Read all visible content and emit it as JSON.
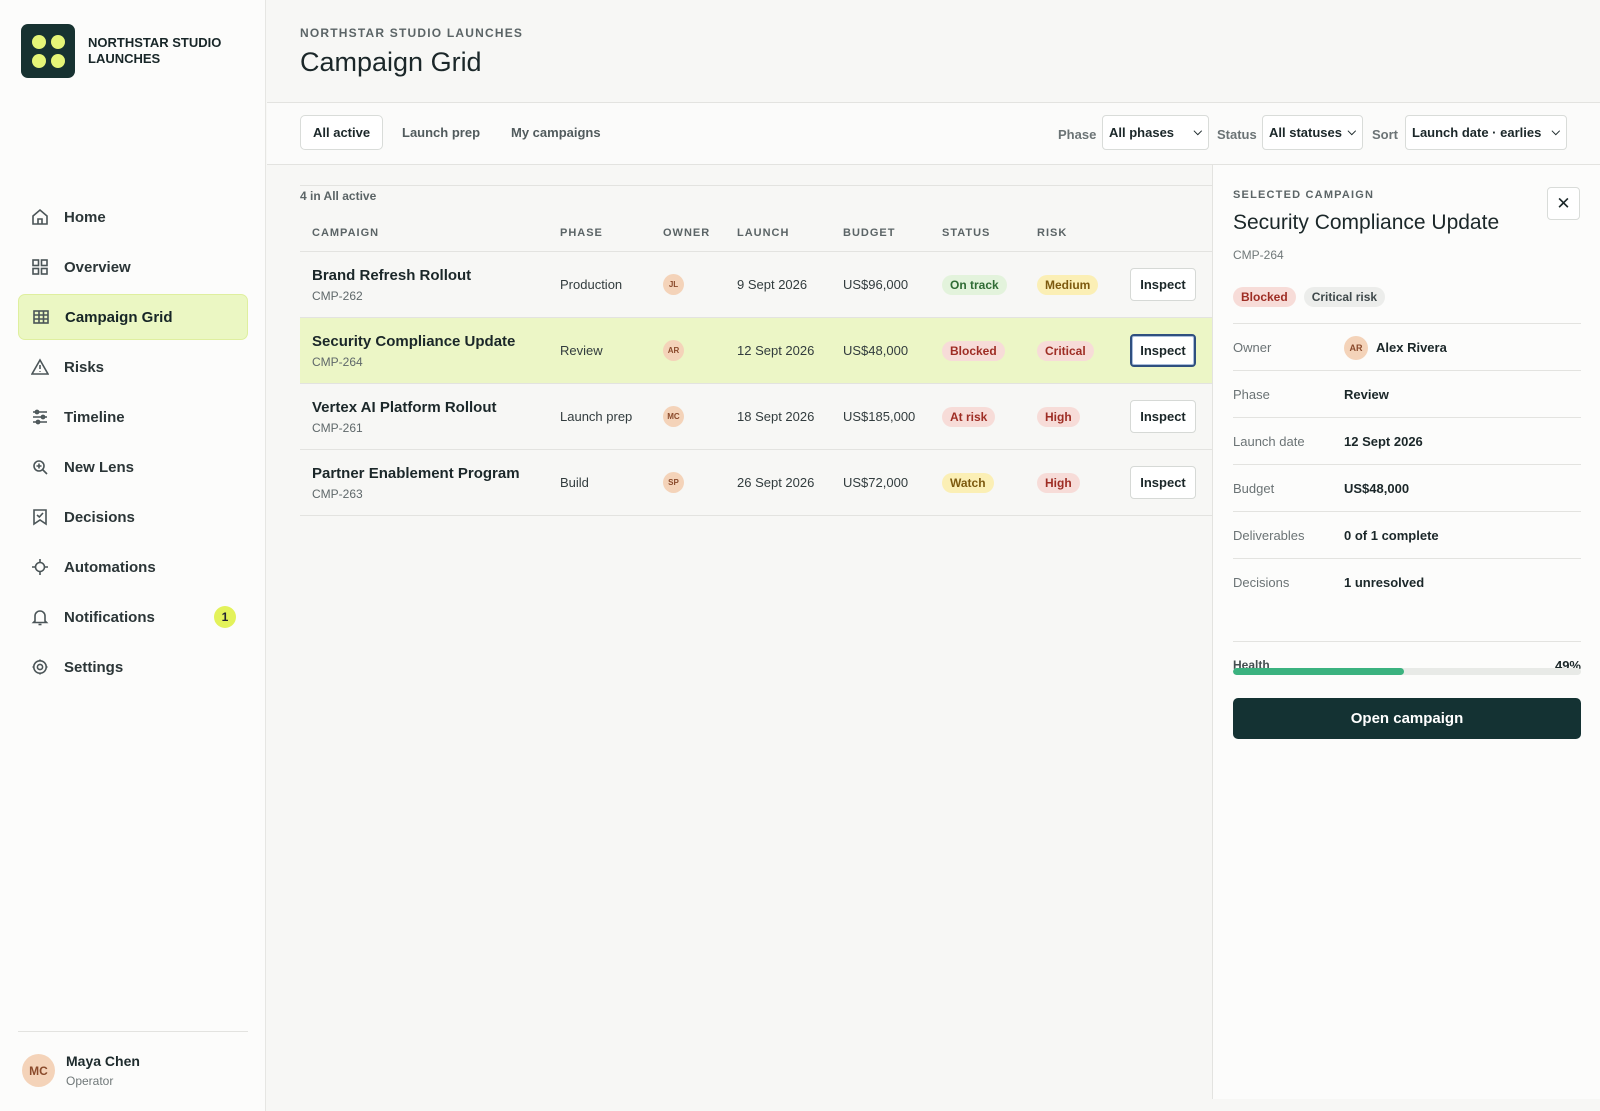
{
  "brand": {
    "name": "NORTHSTAR STUDIO LAUNCHES"
  },
  "sidebar": {
    "items": [
      {
        "label": "Home",
        "icon": "home-icon"
      },
      {
        "label": "Overview",
        "icon": "grid-icon"
      },
      {
        "label": "Campaign Grid",
        "icon": "table-icon",
        "active": true
      },
      {
        "label": "Risks",
        "icon": "warning-icon"
      },
      {
        "label": "Timeline",
        "icon": "sliders-icon"
      },
      {
        "label": "New Lens",
        "icon": "lens-icon"
      },
      {
        "label": "Decisions",
        "icon": "bookmark-check-icon"
      },
      {
        "label": "Automations",
        "icon": "crosshair-icon"
      },
      {
        "label": "Notifications",
        "icon": "bell-icon",
        "badge": "1"
      },
      {
        "label": "Settings",
        "icon": "gear-icon"
      }
    ]
  },
  "user": {
    "initials": "MC",
    "name": "Maya Chen",
    "role": "Operator"
  },
  "header": {
    "eyebrow": "NORTHSTAR STUDIO LAUNCHES",
    "title": "Campaign Grid"
  },
  "toolbar": {
    "tabs": [
      "All active",
      "Launch prep",
      "My campaigns"
    ],
    "phase_label": "Phase",
    "phase_value": "All phases",
    "status_label": "Status",
    "status_value": "All statuses",
    "sort_label": "Sort",
    "sort_value": "Launch date · earlies"
  },
  "table": {
    "count": "4 in All active",
    "columns": [
      "CAMPAIGN",
      "PHASE",
      "OWNER",
      "LAUNCH",
      "BUDGET",
      "STATUS",
      "RISK"
    ],
    "inspect_label": "Inspect",
    "rows": [
      {
        "name": "Brand Refresh Rollout",
        "id": "CMP-262",
        "phase": "Production",
        "owner": "JL",
        "launch": "9 Sept 2026",
        "budget": "US$96,000",
        "status": "On track",
        "risk": "Medium"
      },
      {
        "name": "Security Compliance Update",
        "id": "CMP-264",
        "phase": "Review",
        "owner": "AR",
        "launch": "12 Sept 2026",
        "budget": "US$48,000",
        "status": "Blocked",
        "risk": "Critical",
        "selected": true
      },
      {
        "name": "Vertex AI Platform Rollout",
        "id": "CMP-261",
        "phase": "Launch prep",
        "owner": "MC",
        "launch": "18 Sept 2026",
        "budget": "US$185,000",
        "status": "At risk",
        "risk": "High"
      },
      {
        "name": "Partner Enablement Program",
        "id": "CMP-263",
        "phase": "Build",
        "owner": "SP",
        "launch": "26 Sept 2026",
        "budget": "US$72,000",
        "status": "Watch",
        "risk": "High"
      }
    ]
  },
  "detail": {
    "eyebrow": "SELECTED CAMPAIGN",
    "title": "Security Compliance Update",
    "id": "CMP-264",
    "close_icon": "close-icon",
    "badges": [
      "Blocked",
      "Critical risk"
    ],
    "fields": [
      {
        "key": "Owner",
        "value": "Alex Rivera",
        "initials": "AR"
      },
      {
        "key": "Phase",
        "value": "Review"
      },
      {
        "key": "Launch date",
        "value": "12 Sept 2026"
      },
      {
        "key": "Budget",
        "value": "US$48,000"
      },
      {
        "key": "Deliverables",
        "value": "0 of 1 complete"
      },
      {
        "key": "Decisions",
        "value": "1 unresolved"
      }
    ],
    "health_label": "Health",
    "health_value": "49%",
    "health_fraction": 0.49,
    "open_label": "Open campaign"
  },
  "colors": {
    "accent": "#e3f25a",
    "dark": "#143233",
    "selected_row": "#ecf6c6",
    "health_bar": "#3bb27f"
  }
}
